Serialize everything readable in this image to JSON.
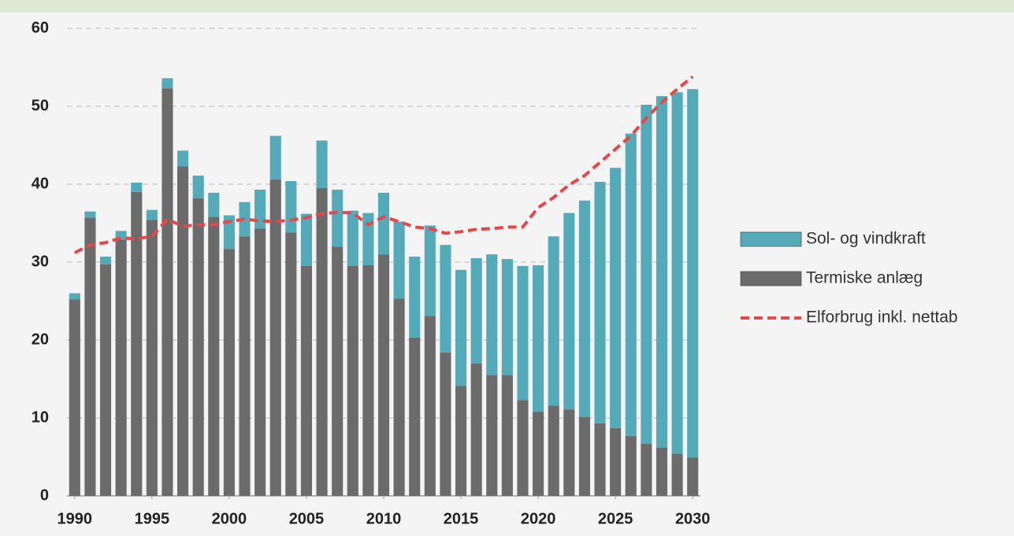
{
  "chart_data": {
    "type": "bar",
    "stacked": true,
    "x": [
      1990,
      1991,
      1992,
      1993,
      1994,
      1995,
      1996,
      1997,
      1998,
      1999,
      2000,
      2001,
      2002,
      2003,
      2004,
      2005,
      2006,
      2007,
      2008,
      2009,
      2010,
      2011,
      2012,
      2013,
      2014,
      2015,
      2016,
      2017,
      2018,
      2019,
      2020,
      2021,
      2022,
      2023,
      2024,
      2025,
      2026,
      2027,
      2028,
      2029,
      2030
    ],
    "xlim": [
      1989.5,
      2030.5
    ],
    "xticks": [
      1990,
      1995,
      2000,
      2005,
      2010,
      2015,
      2020,
      2025,
      2030
    ],
    "ylim": [
      0,
      60
    ],
    "yticks": [
      0,
      10,
      20,
      30,
      40,
      50,
      60
    ],
    "grid": true,
    "series": [
      {
        "name": "Sol- og vindkraft",
        "color": "#55aab9",
        "values": [
          0.8,
          0.8,
          1.0,
          1.1,
          1.2,
          1.3,
          1.3,
          2.0,
          2.9,
          3.1,
          4.3,
          4.4,
          5.0,
          5.6,
          6.6,
          6.7,
          6.1,
          7.3,
          7.1,
          6.7,
          7.9,
          9.9,
          10.4,
          11.6,
          13.8,
          14.9,
          13.5,
          15.5,
          14.9,
          17.2,
          18.8,
          21.7,
          25.2,
          27.8,
          31.0,
          33.4,
          38.8,
          43.5,
          45.1,
          46.4,
          47.3
        ]
      },
      {
        "name": "Termiske anlæg",
        "color": "#6b6b6b",
        "values": [
          25.2,
          35.7,
          29.7,
          32.9,
          39.0,
          35.4,
          52.3,
          42.3,
          38.2,
          35.8,
          31.7,
          33.3,
          34.3,
          40.6,
          33.8,
          29.5,
          39.5,
          32.0,
          29.5,
          29.6,
          31.0,
          25.3,
          20.3,
          23.1,
          18.4,
          14.1,
          17.0,
          15.5,
          15.5,
          12.3,
          10.8,
          11.6,
          11.1,
          10.1,
          9.3,
          8.7,
          7.7,
          6.7,
          6.2,
          5.4,
          4.9
        ]
      },
      {
        "name": "Elforbrug inkl. nettab",
        "type": "line",
        "color": "#e8474a",
        "values": [
          31.2,
          32.2,
          32.5,
          33.1,
          33.0,
          33.3,
          35.5,
          34.6,
          34.8,
          34.8,
          35.2,
          35.5,
          35.3,
          35.2,
          35.4,
          35.7,
          36.2,
          36.4,
          36.3,
          34.8,
          35.8,
          35.2,
          34.5,
          34.3,
          33.7,
          33.9,
          34.2,
          34.3,
          34.5,
          34.5,
          37.0,
          38.3,
          39.9,
          41.1,
          42.8,
          44.5,
          46.2,
          48.5,
          50.5,
          52.2,
          53.8
        ]
      }
    ]
  }
}
